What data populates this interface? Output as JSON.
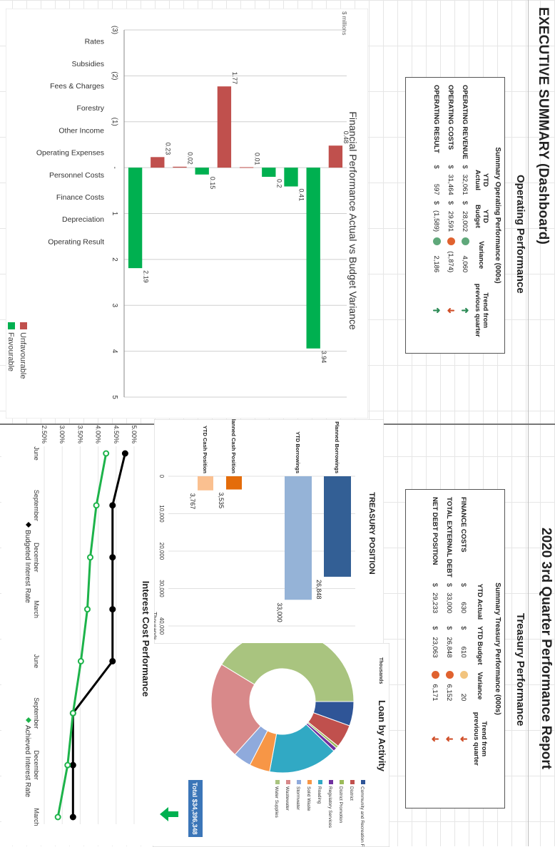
{
  "header": {
    "title": "EXECUTIVE SUMMARY (Dashboard)",
    "report": "2020 3rd Quarter Performance Report"
  },
  "operating": {
    "section_title": "Operating Performance",
    "table_title": "Summary Operating Performance (000s)",
    "col_actual_1": "YTD",
    "col_actual_2": "Actual",
    "col_budget_1": "YTD",
    "col_budget_2": "Budget",
    "col_variance": "Variance",
    "col_trend": "Trend from previous quarter",
    "rows": [
      {
        "label": "OPERATING REVENUE",
        "cur1": "$",
        "actual": "32,061",
        "cur2": "$",
        "budget": "28,002",
        "variance": "4,060",
        "status": "#5fa87a",
        "trend": "➜",
        "trend_color": "#2e8b57"
      },
      {
        "label": "OPERATING COSTS",
        "cur1": "$",
        "actual": "31,464",
        "cur2": "$",
        "budget": "29,591",
        "variance": "(1,874)",
        "status": "#e0622f",
        "trend": "➜",
        "trend_color": "#d0502a"
      },
      {
        "label": "OPERATING RESULT",
        "cur1": "$",
        "actual": "597",
        "cur2": "$",
        "budget": "(1,589)",
        "variance": "2,186",
        "status": "#5fa87a",
        "trend": "➜",
        "trend_color": "#2e8b57"
      }
    ]
  },
  "treasury": {
    "section_title": "Treasury Performance",
    "table_title": "Summary Treasury Performance (000s)",
    "col_actual": "YTD Actual",
    "col_budget": "YTD Budget",
    "col_variance": "Variance",
    "col_trend": "Trend from previous quarter",
    "rows": [
      {
        "label": "FINANCE COSTS",
        "cur1": "$",
        "actual": "630",
        "cur2": "$",
        "budget": "610",
        "variance": "20",
        "status": "#f2c47e",
        "trend": "➜",
        "trend_color": "#d0502a"
      },
      {
        "label": "TOTAL EXTERNAL DEBT",
        "cur1": "$",
        "actual": "33,000",
        "cur2": "$",
        "budget": "26,848",
        "variance": "6,152",
        "status": "#e0622f",
        "trend": "➜",
        "trend_color": "#d0502a"
      },
      {
        "label": "NET DEBT POSITION",
        "cur1": "$",
        "actual": "29,233",
        "cur2": "$",
        "budget": "23,063",
        "variance": "6,171",
        "status": "#e0622f",
        "trend": "➜",
        "trend_color": "#d0502a"
      }
    ]
  },
  "colors": {
    "unfavourable": "#c0504d",
    "favourable": "#00b050",
    "planned_borrowings": "#335f95",
    "ytd_borrowings": "#95b3d7",
    "planned_cash": "#e46c0a",
    "ytd_cash": "#fac090",
    "budgeted_line": "#000000",
    "achieved_line": "#1db34a"
  },
  "chart_data": [
    {
      "type": "bar",
      "orientation": "horizontal",
      "title": "Financial Performance Actual vs Budget Variance",
      "units_label": "$ millions",
      "categories": [
        "Rates",
        "Subsidies",
        "Fees & Charges",
        "Forestry",
        "Other Income",
        "Operating Expenses",
        "Personnel Costs",
        "Finance Costs",
        "Depreciation",
        "Operating Result"
      ],
      "values": [
        -0.48,
        3.94,
        0.41,
        0.2,
        -0.01,
        -1.77,
        0.15,
        -0.02,
        -0.23,
        2.19
      ],
      "data_labels": [
        "0.48",
        "3.94",
        "0.41",
        "0.2",
        "0.01",
        "1.77",
        "0.15",
        "0.02",
        "0.23",
        "2.19"
      ],
      "x_ticks": [
        "(3)",
        "(2)",
        "(1)",
        "-",
        "1",
        "2",
        "3",
        "4",
        "5"
      ],
      "xlim": [
        -3,
        5
      ],
      "legend": [
        "Unfavourable",
        "Favourable"
      ]
    },
    {
      "type": "bar",
      "orientation": "horizontal",
      "title": "TREASURY POSITION",
      "categories": [
        "Planned Borrowings",
        "YTD Borrowings",
        "Planned Cash Position",
        "YTD Cash Position"
      ],
      "values": [
        26848,
        33000,
        3535,
        3767
      ],
      "data_labels": [
        "26,848",
        "33,000",
        "3,535",
        "3,767"
      ],
      "x_ticks": [
        "0",
        "10,000",
        "20,000",
        "30,000",
        "40,000"
      ],
      "xlabel": "Thousands",
      "xlim": [
        0,
        40000
      ]
    },
    {
      "type": "pie",
      "title": "Loan by Activity",
      "units_label": "Thousands",
      "total_label": "Total  $34,396,348",
      "categories": [
        "Community and Recreation Facilities",
        "District",
        "District Promotion",
        "Regulatory Services",
        "Roading",
        "Solid Waste",
        "Stormwater",
        "Wastewater",
        "Water Supplies"
      ],
      "values": [
        1900,
        1800,
        200,
        300,
        5400,
        1600,
        1400,
        7600,
        14200
      ],
      "slice_colors": [
        "#2f5597",
        "#c0504d",
        "#9bbb59",
        "#7030a0",
        "#31a9c4",
        "#f79646",
        "#8faadc",
        "#d8898a",
        "#a9c47f"
      ],
      "unit": "$000s (approx.)"
    },
    {
      "type": "line",
      "title": "Interest Cost Performance",
      "x": [
        "June",
        "September",
        "December",
        "March",
        "June",
        "September",
        "December",
        "March"
      ],
      "y_ticks": [
        "5.00%",
        "4.50%",
        "4.00%",
        "3.50%",
        "3.00%",
        "2.50%"
      ],
      "ylim": [
        2.5,
        5.0
      ],
      "series": [
        {
          "name": "Budgeted Interest Rate",
          "values": [
            4.75,
            4.4,
            4.4,
            4.4,
            4.4,
            3.3,
            3.3,
            3.3
          ]
        },
        {
          "name": "Achieved Interest Rate",
          "values": [
            4.22,
            3.95,
            3.78,
            3.7,
            3.52,
            3.3,
            3.15,
            2.88
          ]
        }
      ]
    }
  ]
}
